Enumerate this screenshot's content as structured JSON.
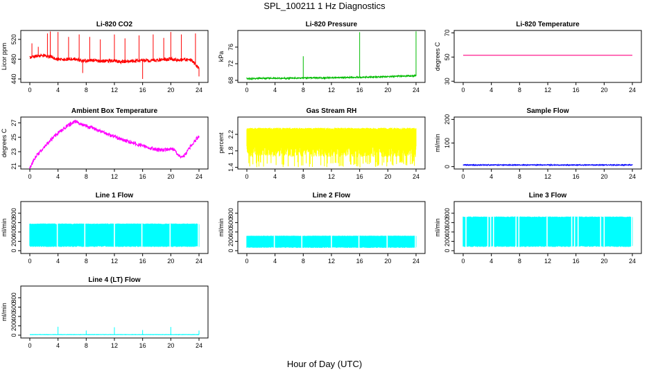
{
  "page": {
    "title": "SPL_100211  1 Hz Diagnostics",
    "xlabel": "Hour of Day (UTC)"
  },
  "chart_data": [
    {
      "type": "line",
      "title": "Li-820 CO2",
      "ylabel": "Licor ppm",
      "xlim": [
        0,
        24
      ],
      "xticks": [
        0,
        4,
        8,
        12,
        16,
        20,
        24
      ],
      "ylim": [
        433,
        538
      ],
      "yticks": [
        440,
        480,
        520
      ],
      "color": "#ff0000",
      "grid": false,
      "series": [
        {
          "x": [
            0,
            1,
            2,
            3,
            4,
            5,
            6,
            7,
            8,
            9,
            10,
            11,
            12,
            13,
            14,
            15,
            16,
            17,
            18,
            19,
            20,
            21,
            22,
            23,
            24
          ],
          "y": [
            484,
            486,
            487,
            485,
            480,
            479,
            481,
            478,
            477,
            478,
            476,
            476,
            477,
            475,
            476,
            476,
            477,
            477,
            478,
            479,
            480,
            478,
            479,
            477,
            462
          ],
          "band": 7
        }
      ],
      "spikes": [
        {
          "x": 0.3,
          "y": 512
        },
        {
          "x": 1.2,
          "y": 505
        },
        {
          "x": 2.5,
          "y": 532
        },
        {
          "x": 2.9,
          "y": 536
        },
        {
          "x": 4.0,
          "y": 535
        },
        {
          "x": 5.5,
          "y": 525
        },
        {
          "x": 7.0,
          "y": 530
        },
        {
          "x": 7.5,
          "y": 452
        },
        {
          "x": 8.5,
          "y": 525
        },
        {
          "x": 10.0,
          "y": 520
        },
        {
          "x": 12.0,
          "y": 530
        },
        {
          "x": 13.5,
          "y": 522
        },
        {
          "x": 15.5,
          "y": 528
        },
        {
          "x": 16.0,
          "y": 440
        },
        {
          "x": 17.5,
          "y": 530
        },
        {
          "x": 19.0,
          "y": 523
        },
        {
          "x": 20.0,
          "y": 535
        },
        {
          "x": 21.5,
          "y": 530
        },
        {
          "x": 23.5,
          "y": 532
        },
        {
          "x": 24.0,
          "y": 445
        }
      ]
    },
    {
      "type": "line",
      "title": "Li-820 Pressure",
      "ylabel": "kPa",
      "xlim": [
        0,
        24
      ],
      "xticks": [
        0,
        4,
        8,
        12,
        16,
        20,
        24
      ],
      "ylim": [
        67.5,
        80
      ],
      "yticks": [
        68,
        72,
        76
      ],
      "color": "#00bb00",
      "grid": false,
      "series": [
        {
          "x": [
            0,
            2,
            4,
            6,
            8,
            10,
            12,
            14,
            16,
            18,
            20,
            22,
            24
          ],
          "y": [
            68.4,
            68.5,
            68.5,
            68.5,
            68.6,
            68.6,
            68.6,
            68.7,
            68.7,
            68.8,
            68.9,
            69.0,
            69.1
          ],
          "band": 0.3
        }
      ],
      "spikes": [
        {
          "x": 8.0,
          "y": 73.8
        },
        {
          "x": 16.0,
          "y": 79.6
        },
        {
          "x": 24.0,
          "y": 79.8
        }
      ]
    },
    {
      "type": "line",
      "title": "Li-820 Temperature",
      "ylabel": "degrees C",
      "xlim": [
        0,
        24
      ],
      "xticks": [
        0,
        4,
        8,
        12,
        16,
        20,
        24
      ],
      "ylim": [
        29,
        72
      ],
      "yticks": [
        30,
        50,
        70
      ],
      "color": "#ff0080",
      "grid": false,
      "series": [
        {
          "x": [
            0,
            24
          ],
          "y": [
            51.5,
            51.5
          ],
          "band": 0
        }
      ]
    },
    {
      "type": "line",
      "title": "Ambient Box Temperature",
      "ylabel": "degrees C",
      "xlim": [
        0,
        24
      ],
      "xticks": [
        0,
        4,
        8,
        12,
        16,
        20,
        24
      ],
      "ylim": [
        20.6,
        27.8
      ],
      "yticks": [
        21,
        23,
        25,
        27
      ],
      "color": "#ff00ff",
      "grid": false,
      "series": [
        {
          "x": [
            0,
            0.5,
            1,
            2,
            3,
            4,
            5,
            6,
            6.5,
            7,
            8,
            9,
            10,
            11,
            12,
            13,
            14,
            15,
            16,
            17,
            18,
            19,
            20,
            20.5,
            21,
            21.5,
            22,
            23,
            24
          ],
          "y": [
            20.7,
            21.8,
            22.5,
            23.6,
            24.6,
            25.6,
            26.3,
            27.0,
            27.2,
            27.0,
            26.6,
            26.2,
            25.8,
            25.4,
            25.1,
            24.7,
            24.4,
            24.1,
            23.8,
            23.5,
            23.3,
            23.2,
            23.5,
            23.2,
            22.6,
            22.3,
            22.5,
            24.0,
            25.2
          ],
          "band": 0.5
        }
      ]
    },
    {
      "type": "line",
      "title": "Gas Stream RH",
      "ylabel": "percent",
      "xlim": [
        0,
        24
      ],
      "xticks": [
        0,
        4,
        8,
        12,
        16,
        20,
        24
      ],
      "ylim": [
        1.36,
        2.62
      ],
      "yticks": [
        1.4,
        1.8,
        2.2
      ],
      "color": "#ffff00",
      "grid": false,
      "series": [
        {
          "x": [
            0,
            24
          ],
          "y": [
            2.36,
            2.36
          ],
          "low": [
            1.65,
            1.95
          ],
          "lowmin": 1.4
        }
      ]
    },
    {
      "type": "line",
      "title": "Sample Flow",
      "ylabel": "ml/min",
      "xlim": [
        0,
        24
      ],
      "xticks": [
        0,
        4,
        8,
        12,
        16,
        20,
        24
      ],
      "ylim": [
        -10,
        210
      ],
      "yticks": [
        0,
        100,
        200
      ],
      "color": "#0000ff",
      "grid": false,
      "series": [
        {
          "x": [
            0,
            24
          ],
          "y": [
            7,
            7
          ],
          "band": 3
        }
      ]
    },
    {
      "type": "line",
      "title": "Line 1 Flow",
      "ylabel": "ml/min",
      "xlim": [
        0,
        24
      ],
      "xticks": [
        0,
        4,
        8,
        12,
        16,
        20,
        24
      ],
      "ylim": [
        -60,
        1050
      ],
      "yticks": [
        0,
        200,
        400,
        600,
        800
      ],
      "color": "#00ffff",
      "grid": false,
      "series": [
        {
          "x": [
            0,
            24
          ],
          "hi": 580,
          "lo": 80,
          "gaps": [
            3.9,
            7.8,
            12.0,
            15.9,
            19.9,
            23.9
          ]
        }
      ]
    },
    {
      "type": "line",
      "title": "Line 2 Flow",
      "ylabel": "ml/min",
      "xlim": [
        0,
        24
      ],
      "xticks": [
        0,
        4,
        8,
        12,
        16,
        20,
        24
      ],
      "ylim": [
        -60,
        1050
      ],
      "yticks": [
        0,
        200,
        400,
        600,
        800
      ],
      "color": "#00ffff",
      "grid": false,
      "series": [
        {
          "x": [
            0,
            24
          ],
          "hi": 320,
          "lo": 60,
          "gaps": [
            3.9,
            7.8,
            12.0,
            15.9,
            19.9,
            23.9
          ]
        }
      ]
    },
    {
      "type": "line",
      "title": "Line 3 Flow",
      "ylabel": "ml/min",
      "xlim": [
        0,
        24
      ],
      "xticks": [
        0,
        4,
        8,
        12,
        16,
        20,
        24
      ],
      "ylim": [
        -60,
        1050
      ],
      "yticks": [
        0,
        200,
        400,
        600,
        800
      ],
      "color": "#00ffff",
      "grid": false,
      "series": [
        {
          "x": [
            0,
            24
          ],
          "hi": 730,
          "lo": 80,
          "gaps": [
            0.4,
            3.5,
            3.9,
            4.3,
            7.5,
            7.9,
            11.9,
            15.4,
            15.8,
            16.3,
            19.5,
            20.0,
            23.9
          ]
        }
      ]
    },
    {
      "type": "line",
      "title": "Line 4 (LT) Flow",
      "ylabel": "ml/min",
      "xlim": [
        0,
        24
      ],
      "xticks": [
        0,
        4,
        8,
        12,
        16,
        20,
        24
      ],
      "ylim": [
        -60,
        1050
      ],
      "yticks": [
        0,
        200,
        400,
        600,
        800
      ],
      "color": "#00ffff",
      "grid": false,
      "series": [
        {
          "x": [
            0,
            24
          ],
          "y": [
            12,
            12
          ],
          "band": 4
        }
      ],
      "spikes": [
        {
          "x": 4.0,
          "y": 180
        },
        {
          "x": 8.0,
          "y": 100
        },
        {
          "x": 12.0,
          "y": 170
        },
        {
          "x": 16.0,
          "y": 110
        },
        {
          "x": 20.0,
          "y": 175
        },
        {
          "x": 24.0,
          "y": 100
        }
      ]
    }
  ]
}
